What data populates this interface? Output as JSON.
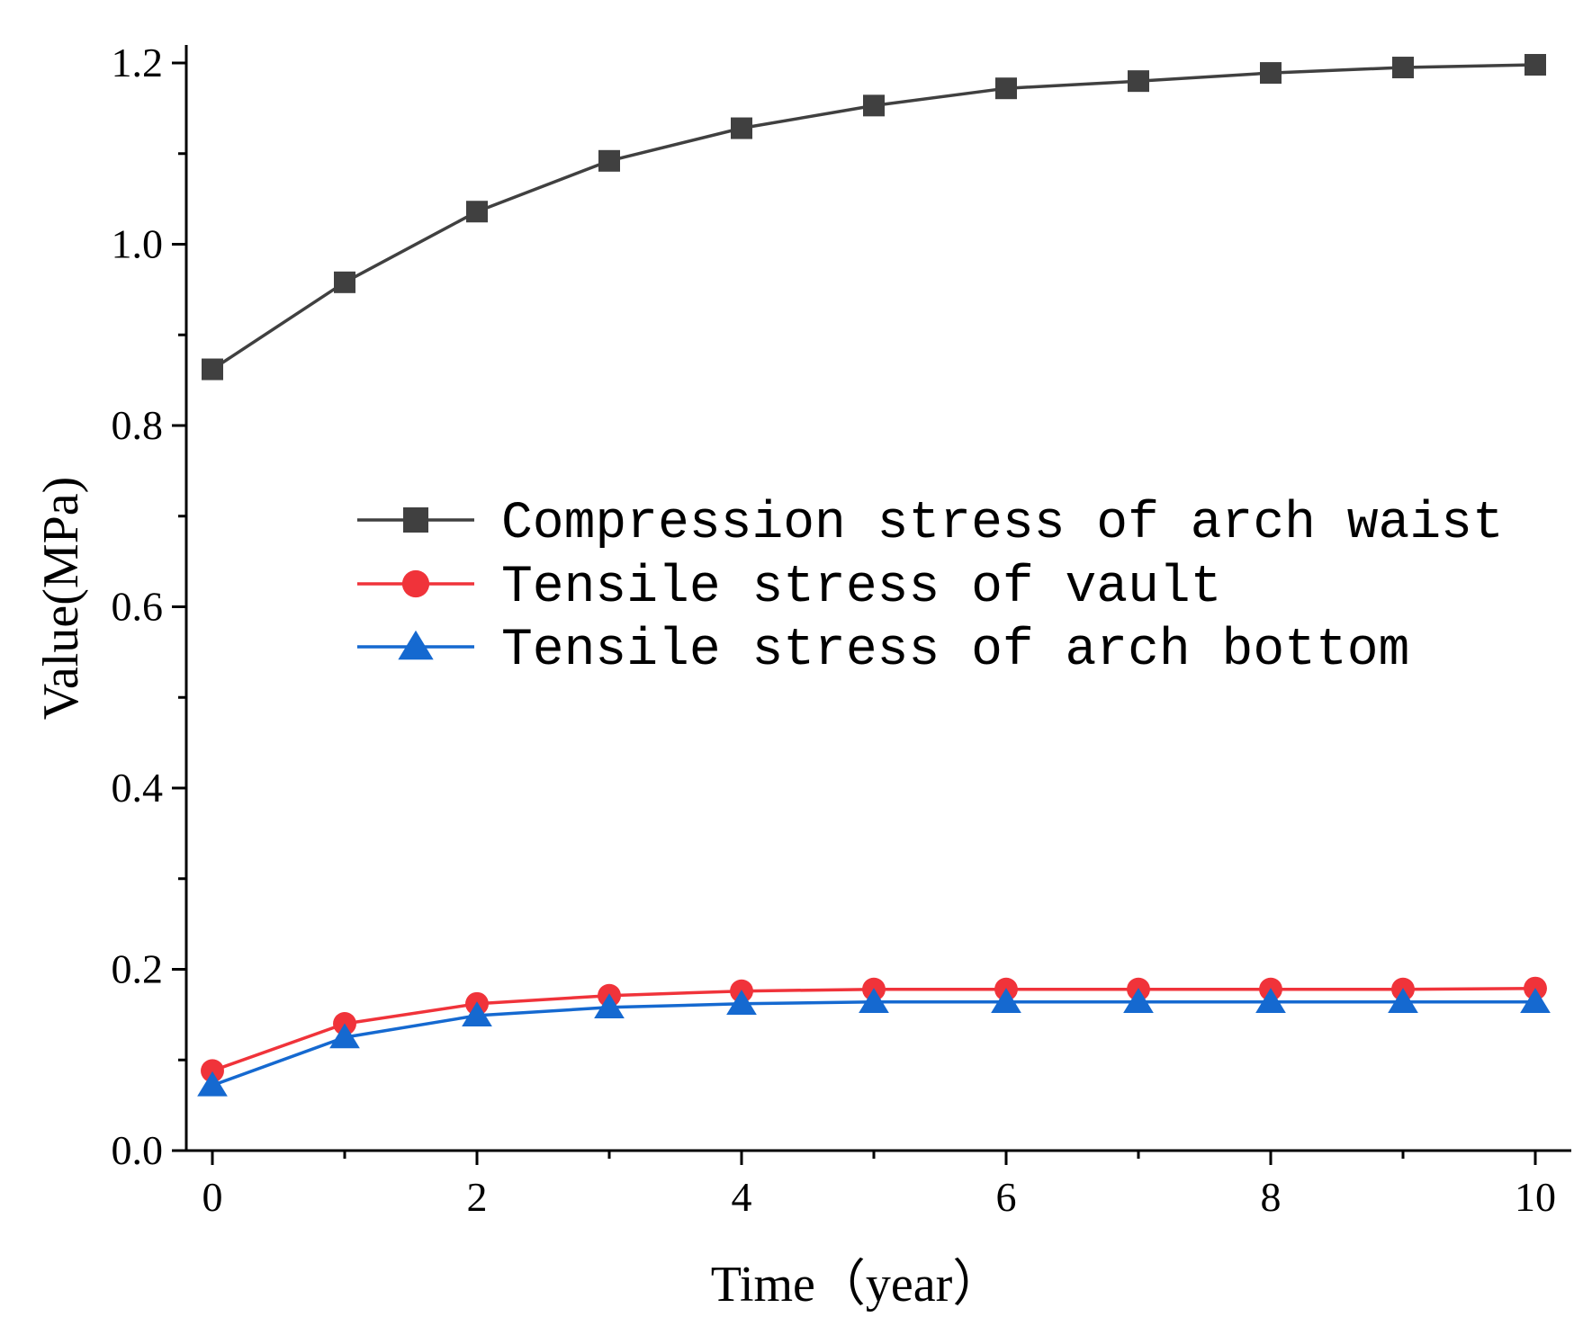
{
  "chart_data": {
    "type": "line",
    "title": "",
    "xlabel": "Time（year）",
    "ylabel": "Value(MPa)",
    "xlim": [
      -0.2,
      10.2
    ],
    "ylim": [
      0.0,
      1.22
    ],
    "x": [
      0,
      1,
      2,
      3,
      4,
      5,
      6,
      7,
      8,
      9,
      10
    ],
    "xticks": [
      0,
      2,
      4,
      6,
      8,
      10
    ],
    "xtick_labels": [
      "0",
      "2",
      "4",
      "6",
      "8",
      "10"
    ],
    "yticks": [
      0.0,
      0.2,
      0.4,
      0.6,
      0.8,
      1.0,
      1.2
    ],
    "ytick_labels": [
      "0.0",
      "0.2",
      "0.4",
      "0.6",
      "0.8",
      "1.0",
      "1.2"
    ],
    "grid": false,
    "legend_position": "center",
    "series": [
      {
        "name": "Compression stress of arch waist",
        "marker": "square",
        "color": "#404040",
        "values": [
          0.862,
          0.958,
          1.036,
          1.092,
          1.128,
          1.153,
          1.172,
          1.18,
          1.189,
          1.195,
          1.198
        ]
      },
      {
        "name": "Tensile stress of vault",
        "marker": "circle",
        "color": "#f0333a",
        "values": [
          0.088,
          0.14,
          0.162,
          0.171,
          0.176,
          0.178,
          0.178,
          0.178,
          0.178,
          0.178,
          0.179
        ]
      },
      {
        "name": "Tensile stress of arch bottom",
        "marker": "triangle",
        "color": "#1569d0",
        "values": [
          0.072,
          0.125,
          0.149,
          0.158,
          0.162,
          0.164,
          0.164,
          0.164,
          0.164,
          0.164,
          0.164
        ]
      }
    ]
  }
}
